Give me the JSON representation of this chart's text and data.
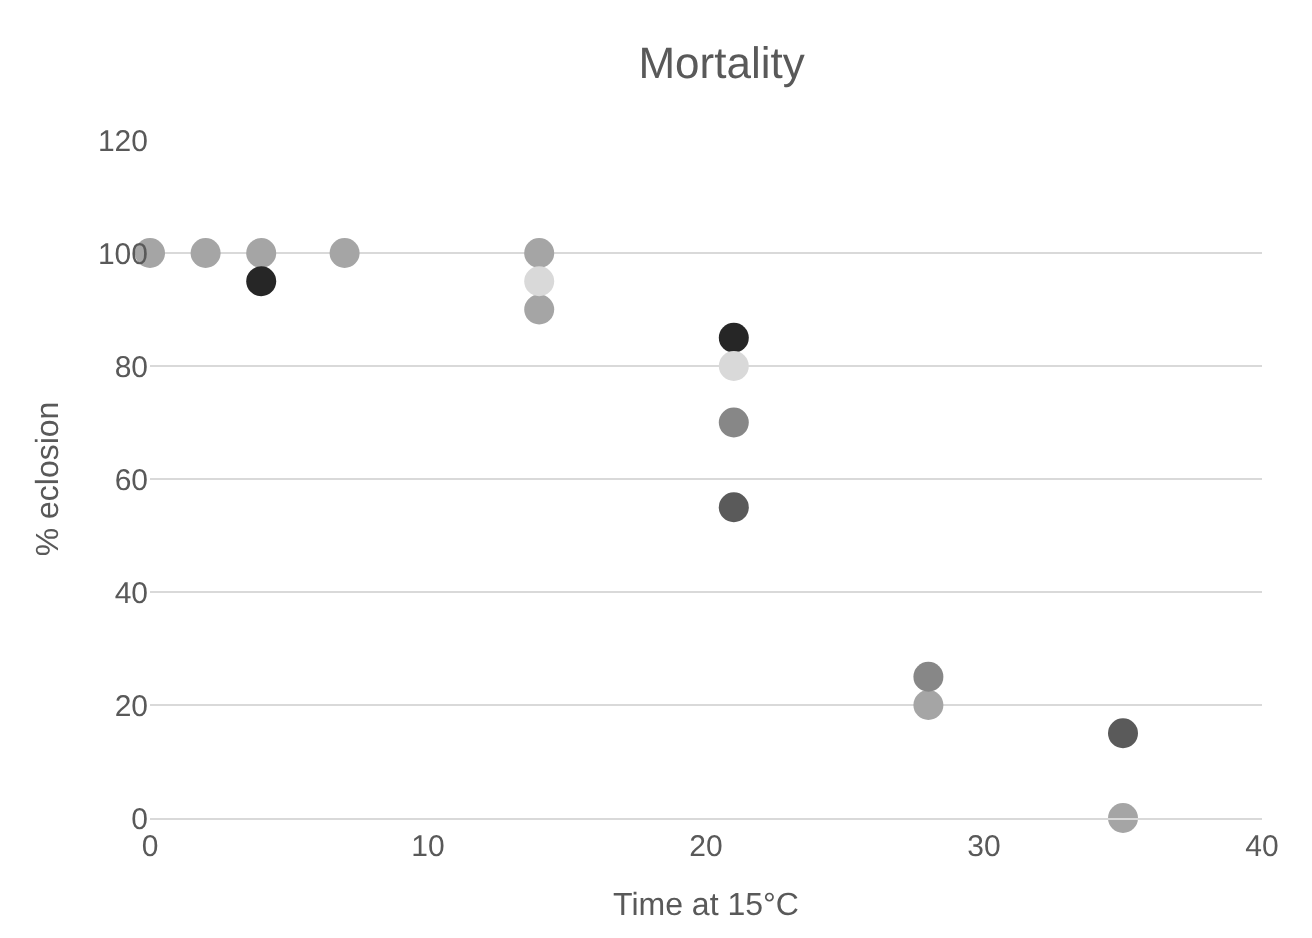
{
  "chart_data": {
    "type": "scatter",
    "title": "Mortality",
    "xlabel": "Time at 15°C",
    "ylabel": "% eclosion",
    "series": [
      {
        "color": "#a5a5a5",
        "x": [
          0,
          2,
          4,
          7,
          14,
          14,
          28,
          35
        ],
        "values": [
          100,
          100,
          100,
          100,
          100,
          90,
          20,
          0
        ]
      },
      {
        "color": "#262626",
        "x": [
          4,
          21
        ],
        "values": [
          95,
          85
        ]
      },
      {
        "color": "#d9d9d9",
        "x": [
          14,
          21
        ],
        "values": [
          95,
          80
        ]
      },
      {
        "color": "#878787",
        "x": [
          21,
          28
        ],
        "values": [
          70,
          25
        ]
      },
      {
        "color": "#5a5a5a",
        "x": [
          21,
          35
        ],
        "values": [
          55,
          15
        ]
      }
    ],
    "xlim": [
      0,
      40
    ],
    "xticks": [
      0,
      10,
      20,
      30,
      40
    ],
    "ylim": [
      0,
      120
    ],
    "yticks": [
      0,
      20,
      40,
      60,
      80,
      100,
      120
    ],
    "grid": "y",
    "marker": "circle"
  }
}
